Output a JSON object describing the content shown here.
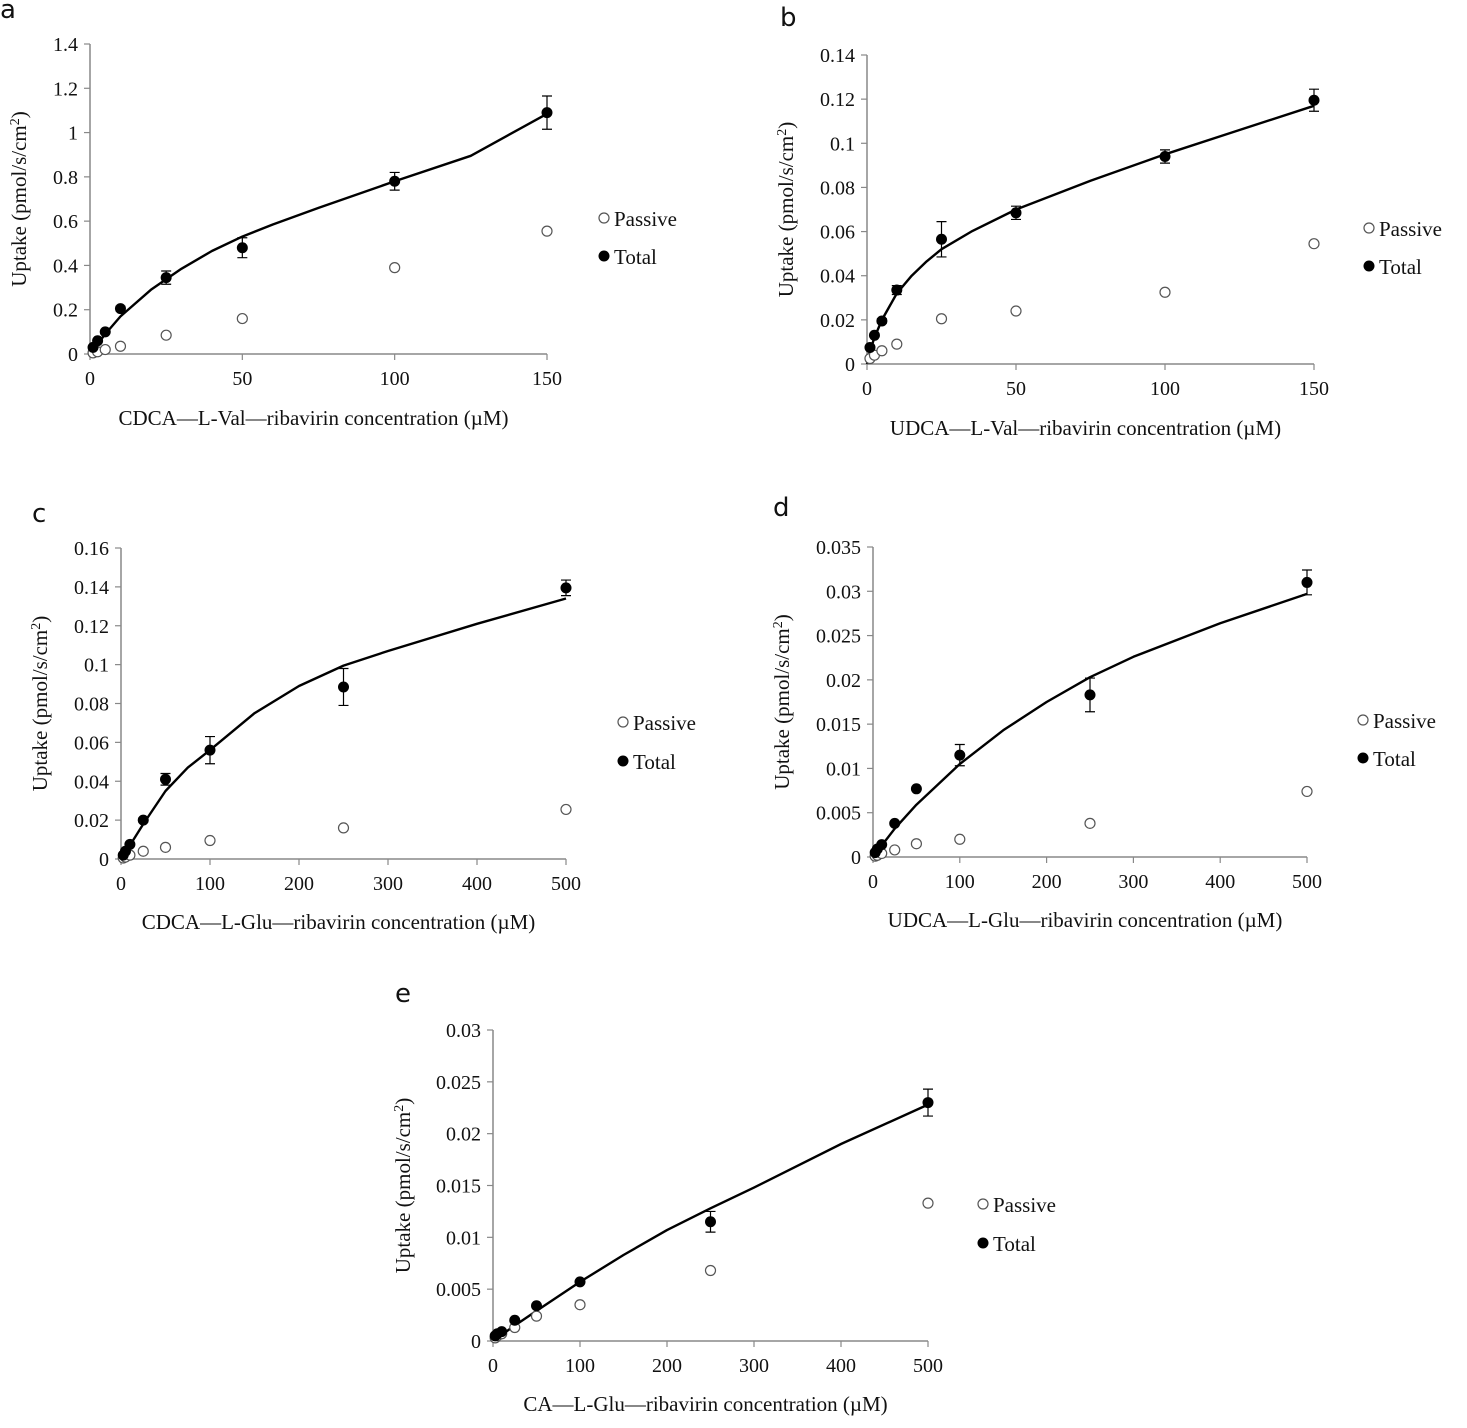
{
  "legend": {
    "passive_label": "Passive",
    "total_label": "Total"
  },
  "colors": {
    "passive_fill": "#ffffff",
    "passive_stroke": "#555555",
    "total_fill": "#000000",
    "axis": "#888888",
    "curve": "#000000"
  },
  "chart_data": [
    {
      "panel": "a",
      "type": "scatter",
      "xlabel": "CDCA—L-Val—ribavirin concentration (µM)",
      "ylabel_parts": [
        "Uptake (pmol/s/cm",
        "2",
        ")"
      ],
      "xlim": [
        0,
        150
      ],
      "xticks": [
        0,
        50,
        100,
        150
      ],
      "xtick_labels": [
        "0",
        "50",
        "100",
        "150"
      ],
      "ylim": [
        0,
        1.4
      ],
      "yticks": [
        0,
        0.2,
        0.4,
        0.6,
        0.8,
        1.0,
        1.2,
        1.4
      ],
      "ytick_labels": [
        "0",
        "0.2",
        "0.4",
        "0.6",
        "0.8",
        "1",
        "1.2",
        "1.4"
      ],
      "series": [
        {
          "name": "Passive",
          "x": [
            1,
            2.5,
            5,
            10,
            25,
            50,
            100,
            150
          ],
          "y": [
            0.005,
            0.01,
            0.02,
            0.035,
            0.085,
            0.16,
            0.39,
            0.555
          ]
        },
        {
          "name": "Total",
          "x": [
            1,
            2.5,
            5,
            10,
            25,
            50,
            100,
            150
          ],
          "y": [
            0.03,
            0.06,
            0.1,
            0.205,
            0.345,
            0.48,
            0.78,
            1.09
          ],
          "yerr": [
            0,
            0,
            0,
            0.01,
            0.03,
            0.045,
            0.04,
            0.075
          ]
        }
      ],
      "fit": {
        "x": [
          0,
          1,
          2.5,
          5,
          10,
          20,
          30,
          40,
          50,
          60,
          75,
          100,
          125,
          150
        ],
        "y": [
          0,
          0.02,
          0.045,
          0.09,
          0.17,
          0.29,
          0.385,
          0.465,
          0.53,
          0.585,
          0.66,
          0.78,
          0.895,
          1.085
        ]
      }
    },
    {
      "panel": "b",
      "type": "scatter",
      "xlabel": "UDCA—L-Val—ribavirin concentration (µM)",
      "ylabel_parts": [
        "Uptake (pmol/s/cm",
        "2",
        ")"
      ],
      "xlim": [
        0,
        150
      ],
      "xticks": [
        0,
        50,
        100,
        150
      ],
      "xtick_labels": [
        "0",
        "50",
        "100",
        "150"
      ],
      "ylim": [
        0,
        0.14
      ],
      "yticks": [
        0,
        0.02,
        0.04,
        0.06,
        0.08,
        0.1,
        0.12,
        0.14
      ],
      "ytick_labels": [
        "0",
        "0.02",
        "0.04",
        "0.06",
        "0.08",
        "0.1",
        "0.12",
        "0.14"
      ],
      "series": [
        {
          "name": "Passive",
          "x": [
            1,
            2.5,
            5,
            10,
            25,
            50,
            100,
            150
          ],
          "y": [
            0.0025,
            0.004,
            0.006,
            0.009,
            0.0205,
            0.024,
            0.0325,
            0.0545
          ]
        },
        {
          "name": "Total",
          "x": [
            1,
            2.5,
            5,
            10,
            25,
            50,
            100,
            150
          ],
          "y": [
            0.0075,
            0.013,
            0.0195,
            0.0335,
            0.0565,
            0.0685,
            0.094,
            0.1195
          ],
          "yerr": [
            0,
            0,
            0.001,
            0.002,
            0.008,
            0.003,
            0.003,
            0.005
          ]
        }
      ],
      "fit": {
        "x": [
          0,
          1,
          2.5,
          5,
          10,
          15,
          20,
          25,
          35,
          50,
          75,
          100,
          125,
          150
        ],
        "y": [
          0,
          0.006,
          0.012,
          0.02,
          0.032,
          0.04,
          0.0465,
          0.052,
          0.06,
          0.07,
          0.083,
          0.095,
          0.106,
          0.117
        ]
      }
    },
    {
      "panel": "c",
      "type": "scatter",
      "xlabel": "CDCA—L-Glu—ribavirin concentration (µM)",
      "ylabel_parts": [
        "Uptake (pmol/s/cm",
        "2",
        ")"
      ],
      "xlim": [
        0,
        500
      ],
      "xticks": [
        0,
        100,
        200,
        300,
        400,
        500
      ],
      "xtick_labels": [
        "0",
        "100",
        "200",
        "300",
        "400",
        "500"
      ],
      "ylim": [
        0,
        0.16
      ],
      "yticks": [
        0,
        0.02,
        0.04,
        0.06,
        0.08,
        0.1,
        0.12,
        0.14,
        0.16
      ],
      "ytick_labels": [
        "0",
        "0.02",
        "0.04",
        "0.06",
        "0.08",
        "0.1",
        "0.12",
        "0.14",
        "0.16"
      ],
      "series": [
        {
          "name": "Passive",
          "x": [
            2.5,
            5,
            10,
            25,
            50,
            100,
            250,
            500
          ],
          "y": [
            0.0005,
            0.001,
            0.002,
            0.004,
            0.006,
            0.0095,
            0.016,
            0.0255
          ]
        },
        {
          "name": "Total",
          "x": [
            2.5,
            5,
            10,
            25,
            50,
            100,
            250,
            500
          ],
          "y": [
            0.002,
            0.004,
            0.0075,
            0.02,
            0.041,
            0.056,
            0.0885,
            0.1395
          ],
          "yerr": [
            0,
            0,
            0,
            0.001,
            0.003,
            0.007,
            0.0095,
            0.004
          ]
        }
      ],
      "fit": {
        "x": [
          0,
          10,
          25,
          50,
          75,
          100,
          150,
          200,
          250,
          300,
          400,
          500
        ],
        "y": [
          0,
          0.007,
          0.018,
          0.035,
          0.047,
          0.056,
          0.075,
          0.089,
          0.0995,
          0.107,
          0.121,
          0.134
        ]
      }
    },
    {
      "panel": "d",
      "type": "scatter",
      "xlabel": "UDCA—L-Glu—ribavirin concentration (µM)",
      "ylabel_parts": [
        "Uptake (pmol/s/cm",
        "2",
        ")"
      ],
      "xlim": [
        0,
        500
      ],
      "xticks": [
        0,
        100,
        200,
        300,
        400,
        500
      ],
      "xtick_labels": [
        "0",
        "100",
        "200",
        "300",
        "400",
        "500"
      ],
      "ylim": [
        0,
        0.035
      ],
      "yticks": [
        0,
        0.005,
        0.01,
        0.015,
        0.02,
        0.025,
        0.03,
        0.035
      ],
      "ytick_labels": [
        "0",
        "0.005",
        "0.01",
        "0.015",
        "0.02",
        "0.025",
        "0.03",
        "0.035"
      ],
      "series": [
        {
          "name": "Passive",
          "x": [
            2.5,
            5,
            10,
            25,
            50,
            100,
            250,
            500
          ],
          "y": [
            0.0001,
            0.0002,
            0.0004,
            0.0008,
            0.0015,
            0.002,
            0.0038,
            0.0074
          ]
        },
        {
          "name": "Total",
          "x": [
            2.5,
            5,
            10,
            25,
            50,
            100,
            250,
            500
          ],
          "y": [
            0.0005,
            0.0009,
            0.0014,
            0.0038,
            0.0077,
            0.0115,
            0.0183,
            0.031
          ],
          "yerr": [
            0,
            0,
            0,
            0,
            0,
            0.0012,
            0.0019,
            0.0014
          ]
        }
      ],
      "fit": {
        "x": [
          0,
          10,
          25,
          50,
          75,
          100,
          150,
          200,
          250,
          300,
          400,
          500
        ],
        "y": [
          0,
          0.0013,
          0.0032,
          0.0059,
          0.0082,
          0.0105,
          0.0143,
          0.0175,
          0.0203,
          0.0226,
          0.0264,
          0.0297
        ]
      }
    },
    {
      "panel": "e",
      "type": "scatter",
      "xlabel": "CA—L-Glu—ribavirin concentration (µM)",
      "ylabel_parts": [
        "Uptake (pmol/s/cm",
        "2",
        ")"
      ],
      "xlim": [
        0,
        500
      ],
      "xticks": [
        0,
        100,
        200,
        300,
        400,
        500
      ],
      "xtick_labels": [
        "0",
        "100",
        "200",
        "300",
        "400",
        "500"
      ],
      "ylim": [
        0,
        0.03
      ],
      "yticks": [
        0,
        0.005,
        0.01,
        0.015,
        0.02,
        0.025,
        0.03
      ],
      "ytick_labels": [
        "0",
        "0.005",
        "0.01",
        "0.015",
        "0.02",
        "0.025",
        "0.03"
      ],
      "series": [
        {
          "name": "Passive",
          "x": [
            2.5,
            5,
            10,
            25,
            50,
            100,
            250,
            500
          ],
          "y": [
            0.0003,
            0.0005,
            0.0007,
            0.0013,
            0.0024,
            0.0035,
            0.0068,
            0.0133
          ]
        },
        {
          "name": "Total",
          "x": [
            2.5,
            5,
            10,
            25,
            50,
            100,
            250,
            500
          ],
          "y": [
            0.0005,
            0.0007,
            0.0009,
            0.002,
            0.0034,
            0.0057,
            0.0115,
            0.023
          ],
          "yerr": [
            0,
            0,
            0,
            0,
            0,
            0,
            0.001,
            0.0013
          ]
        }
      ],
      "fit": {
        "x": [
          0,
          10,
          25,
          50,
          100,
          150,
          200,
          250,
          300,
          400,
          500
        ],
        "y": [
          0,
          0.0006,
          0.0015,
          0.0029,
          0.0057,
          0.0083,
          0.0107,
          0.0128,
          0.0148,
          0.019,
          0.0228
        ]
      }
    }
  ]
}
